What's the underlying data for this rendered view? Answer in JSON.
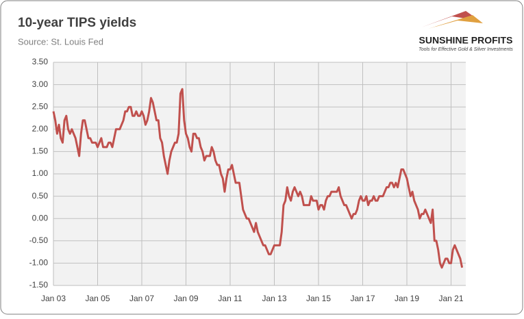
{
  "chart_data": {
    "type": "line",
    "title": "10-year TIPS yields",
    "subtitle": "Source: St. Louis Fed",
    "logo_text": "SUNSHINE PROFITS",
    "logo_tagline": "Tools for Effective Gold & Silver Investments",
    "x": [
      "2003-01",
      "2003-02",
      "2003-03",
      "2003-04",
      "2003-05",
      "2003-06",
      "2003-07",
      "2003-08",
      "2003-09",
      "2003-10",
      "2003-11",
      "2003-12",
      "2004-01",
      "2004-02",
      "2004-03",
      "2004-04",
      "2004-05",
      "2004-06",
      "2004-07",
      "2004-08",
      "2004-09",
      "2004-10",
      "2004-11",
      "2004-12",
      "2005-01",
      "2005-02",
      "2005-03",
      "2005-04",
      "2005-05",
      "2005-06",
      "2005-07",
      "2005-08",
      "2005-09",
      "2005-10",
      "2005-11",
      "2005-12",
      "2006-01",
      "2006-02",
      "2006-03",
      "2006-04",
      "2006-05",
      "2006-06",
      "2006-07",
      "2006-08",
      "2006-09",
      "2006-10",
      "2006-11",
      "2006-12",
      "2007-01",
      "2007-02",
      "2007-03",
      "2007-04",
      "2007-05",
      "2007-06",
      "2007-07",
      "2007-08",
      "2007-09",
      "2007-10",
      "2007-11",
      "2007-12",
      "2008-01",
      "2008-02",
      "2008-03",
      "2008-04",
      "2008-05",
      "2008-06",
      "2008-07",
      "2008-08",
      "2008-09",
      "2008-10",
      "2008-11",
      "2008-12",
      "2009-01",
      "2009-02",
      "2009-03",
      "2009-04",
      "2009-05",
      "2009-06",
      "2009-07",
      "2009-08",
      "2009-09",
      "2009-10",
      "2009-11",
      "2009-12",
      "2010-01",
      "2010-02",
      "2010-03",
      "2010-04",
      "2010-05",
      "2010-06",
      "2010-07",
      "2010-08",
      "2010-09",
      "2010-10",
      "2010-11",
      "2010-12",
      "2011-01",
      "2011-02",
      "2011-03",
      "2011-04",
      "2011-05",
      "2011-06",
      "2011-07",
      "2011-08",
      "2011-09",
      "2011-10",
      "2011-11",
      "2011-12",
      "2012-01",
      "2012-02",
      "2012-03",
      "2012-04",
      "2012-05",
      "2012-06",
      "2012-07",
      "2012-08",
      "2012-09",
      "2012-10",
      "2012-11",
      "2012-12",
      "2013-01",
      "2013-02",
      "2013-03",
      "2013-04",
      "2013-05",
      "2013-06",
      "2013-07",
      "2013-08",
      "2013-09",
      "2013-10",
      "2013-11",
      "2013-12",
      "2014-01",
      "2014-02",
      "2014-03",
      "2014-04",
      "2014-05",
      "2014-06",
      "2014-07",
      "2014-08",
      "2014-09",
      "2014-10",
      "2014-11",
      "2014-12",
      "2015-01",
      "2015-02",
      "2015-03",
      "2015-04",
      "2015-05",
      "2015-06",
      "2015-07",
      "2015-08",
      "2015-09",
      "2015-10",
      "2015-11",
      "2015-12",
      "2016-01",
      "2016-02",
      "2016-03",
      "2016-04",
      "2016-05",
      "2016-06",
      "2016-07",
      "2016-08",
      "2016-09",
      "2016-10",
      "2016-11",
      "2016-12",
      "2017-01",
      "2017-02",
      "2017-03",
      "2017-04",
      "2017-05",
      "2017-06",
      "2017-07",
      "2017-08",
      "2017-09",
      "2017-10",
      "2017-11",
      "2017-12",
      "2018-01",
      "2018-02",
      "2018-03",
      "2018-04",
      "2018-05",
      "2018-06",
      "2018-07",
      "2018-08",
      "2018-09",
      "2018-10",
      "2018-11",
      "2018-12",
      "2019-01",
      "2019-02",
      "2019-03",
      "2019-04",
      "2019-05",
      "2019-06",
      "2019-07",
      "2019-08",
      "2019-09",
      "2019-10",
      "2019-11",
      "2019-12",
      "2020-01",
      "2020-02",
      "2020-03",
      "2020-04",
      "2020-05",
      "2020-06",
      "2020-07",
      "2020-08",
      "2020-09",
      "2020-10",
      "2020-11",
      "2020-12",
      "2021-01",
      "2021-02",
      "2021-03",
      "2021-04",
      "2021-05",
      "2021-06",
      "2021-07"
    ],
    "values": [
      2.4,
      2.2,
      1.9,
      2.1,
      1.8,
      1.7,
      2.2,
      2.3,
      2.0,
      1.9,
      2.0,
      1.9,
      1.8,
      1.6,
      1.4,
      1.9,
      2.2,
      2.2,
      2.0,
      1.8,
      1.8,
      1.7,
      1.7,
      1.7,
      1.6,
      1.7,
      1.8,
      1.6,
      1.6,
      1.6,
      1.7,
      1.7,
      1.6,
      1.8,
      2.0,
      2.0,
      2.0,
      2.1,
      2.2,
      2.4,
      2.4,
      2.5,
      2.5,
      2.3,
      2.3,
      2.4,
      2.3,
      2.3,
      2.4,
      2.3,
      2.1,
      2.2,
      2.4,
      2.7,
      2.6,
      2.4,
      2.2,
      2.2,
      1.8,
      1.7,
      1.4,
      1.2,
      1.0,
      1.3,
      1.5,
      1.6,
      1.7,
      1.7,
      1.9,
      2.8,
      2.9,
      2.2,
      1.9,
      1.8,
      1.6,
      1.5,
      1.9,
      1.9,
      1.8,
      1.8,
      1.6,
      1.5,
      1.3,
      1.4,
      1.4,
      1.4,
      1.6,
      1.5,
      1.3,
      1.2,
      1.2,
      1.0,
      0.9,
      0.6,
      0.9,
      1.1,
      1.1,
      1.2,
      1.0,
      0.8,
      0.8,
      0.8,
      0.5,
      0.2,
      0.1,
      0.0,
      0.0,
      -0.1,
      -0.2,
      -0.3,
      -0.1,
      -0.3,
      -0.4,
      -0.5,
      -0.6,
      -0.6,
      -0.7,
      -0.8,
      -0.8,
      -0.7,
      -0.6,
      -0.6,
      -0.6,
      -0.6,
      -0.3,
      0.3,
      0.4,
      0.7,
      0.5,
      0.4,
      0.6,
      0.7,
      0.6,
      0.5,
      0.6,
      0.5,
      0.3,
      0.3,
      0.3,
      0.3,
      0.5,
      0.4,
      0.4,
      0.4,
      0.2,
      0.3,
      0.3,
      0.2,
      0.4,
      0.5,
      0.5,
      0.6,
      0.6,
      0.6,
      0.6,
      0.7,
      0.5,
      0.4,
      0.3,
      0.3,
      0.2,
      0.1,
      0.0,
      0.1,
      0.1,
      0.2,
      0.4,
      0.5,
      0.4,
      0.4,
      0.5,
      0.3,
      0.4,
      0.4,
      0.5,
      0.4,
      0.4,
      0.5,
      0.5,
      0.5,
      0.6,
      0.7,
      0.7,
      0.8,
      0.8,
      0.7,
      0.8,
      0.7,
      0.9,
      1.1,
      1.1,
      1.0,
      0.9,
      0.7,
      0.5,
      0.6,
      0.4,
      0.3,
      0.2,
      0.0,
      0.1,
      0.1,
      0.2,
      0.1,
      0.0,
      -0.1,
      0.2,
      -0.5,
      -0.5,
      -0.7,
      -1.0,
      -1.1,
      -1.0,
      -0.9,
      -0.9,
      -1.0,
      -1.0,
      -0.7,
      -0.6,
      -0.7,
      -0.8,
      -0.9,
      -1.1
    ],
    "color": "#c0504d",
    "xlim": [
      "2003-01",
      "2021-09"
    ],
    "xticks": [
      {
        "value": "2003-01",
        "label": "Jan 03"
      },
      {
        "value": "2005-01",
        "label": "Jan 05"
      },
      {
        "value": "2007-01",
        "label": "Jan 07"
      },
      {
        "value": "2009-01",
        "label": "Jan 09"
      },
      {
        "value": "2011-01",
        "label": "Jan 11"
      },
      {
        "value": "2013-01",
        "label": "Jan 13"
      },
      {
        "value": "2015-01",
        "label": "Jan 15"
      },
      {
        "value": "2017-01",
        "label": "Jan 17"
      },
      {
        "value": "2019-01",
        "label": "Jan 19"
      },
      {
        "value": "2021-01",
        "label": "Jan 21"
      }
    ],
    "ylim": [
      -1.5,
      3.5
    ],
    "yticks": [
      {
        "value": -1.5,
        "label": "-1.50"
      },
      {
        "value": -1,
        "label": "-1.00"
      },
      {
        "value": -0.5,
        "label": "-0.50"
      },
      {
        "value": 0,
        "label": "0.00"
      },
      {
        "value": 0.5,
        "label": "0.50"
      },
      {
        "value": 1,
        "label": "1.00"
      },
      {
        "value": 1.5,
        "label": "1.50"
      },
      {
        "value": 2,
        "label": "2.00"
      },
      {
        "value": 2.5,
        "label": "2.50"
      },
      {
        "value": 3,
        "label": "3.00"
      },
      {
        "value": 3.5,
        "label": "3.50"
      }
    ],
    "grid": true
  }
}
